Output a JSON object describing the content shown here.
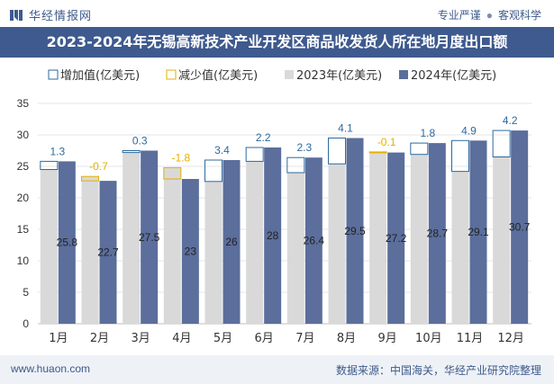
{
  "header": {
    "logo_text": "华经情报网",
    "tagline_1": "专业严谨",
    "tagline_sep": "●",
    "tagline_2": "客观科学"
  },
  "title": "2023-2024年无锡高新技术产业开发区商品收发货人所在地月度出口额",
  "footer": {
    "website": "www.huaon.com",
    "source": "数据来源：中国海关，华经产业研究院整理"
  },
  "colors": {
    "brand": "#3e5a8e",
    "bar_2023": "#d9d9d9",
    "bar_2024": "#5b6e9c",
    "increase": "#2b6a9f",
    "decrease": "#e5b000"
  },
  "chart_data": {
    "type": "bar",
    "categories": [
      "1月",
      "2月",
      "3月",
      "4月",
      "5月",
      "6月",
      "7月",
      "8月",
      "9月",
      "10月",
      "11月",
      "12月"
    ],
    "series": [
      {
        "name": "2023年(亿美元)",
        "values": [
          24.5,
          23.4,
          27.2,
          24.8,
          22.6,
          25.8,
          24.0,
          25.4,
          27.3,
          26.9,
          24.2,
          26.5
        ]
      },
      {
        "name": "2024年(亿美元)",
        "values": [
          25.8,
          22.7,
          27.5,
          23.0,
          26.0,
          28.0,
          26.4,
          29.5,
          27.2,
          28.7,
          29.1,
          30.7
        ]
      }
    ],
    "change_legend": {
      "increase": "增加值(亿美元)",
      "decrease": "减少值(亿美元)"
    },
    "changes": [
      "1.3",
      "-0.7",
      "0.3",
      "-1.8",
      "3.4",
      "2.2",
      "2.3",
      "4.1",
      "-0.1",
      "1.8",
      "4.9",
      "4.2"
    ],
    "labels_2024": [
      "25.8",
      "22.7",
      "27.5",
      "23",
      "26",
      "28",
      "26.4",
      "29.5",
      "27.2",
      "28.7",
      "29.1",
      "30.7"
    ],
    "yticks": [
      "0",
      "5",
      "10",
      "15",
      "20",
      "25",
      "30",
      "35"
    ],
    "ylim": [
      0,
      35
    ],
    "grid": true,
    "legend_position": "top-left"
  }
}
